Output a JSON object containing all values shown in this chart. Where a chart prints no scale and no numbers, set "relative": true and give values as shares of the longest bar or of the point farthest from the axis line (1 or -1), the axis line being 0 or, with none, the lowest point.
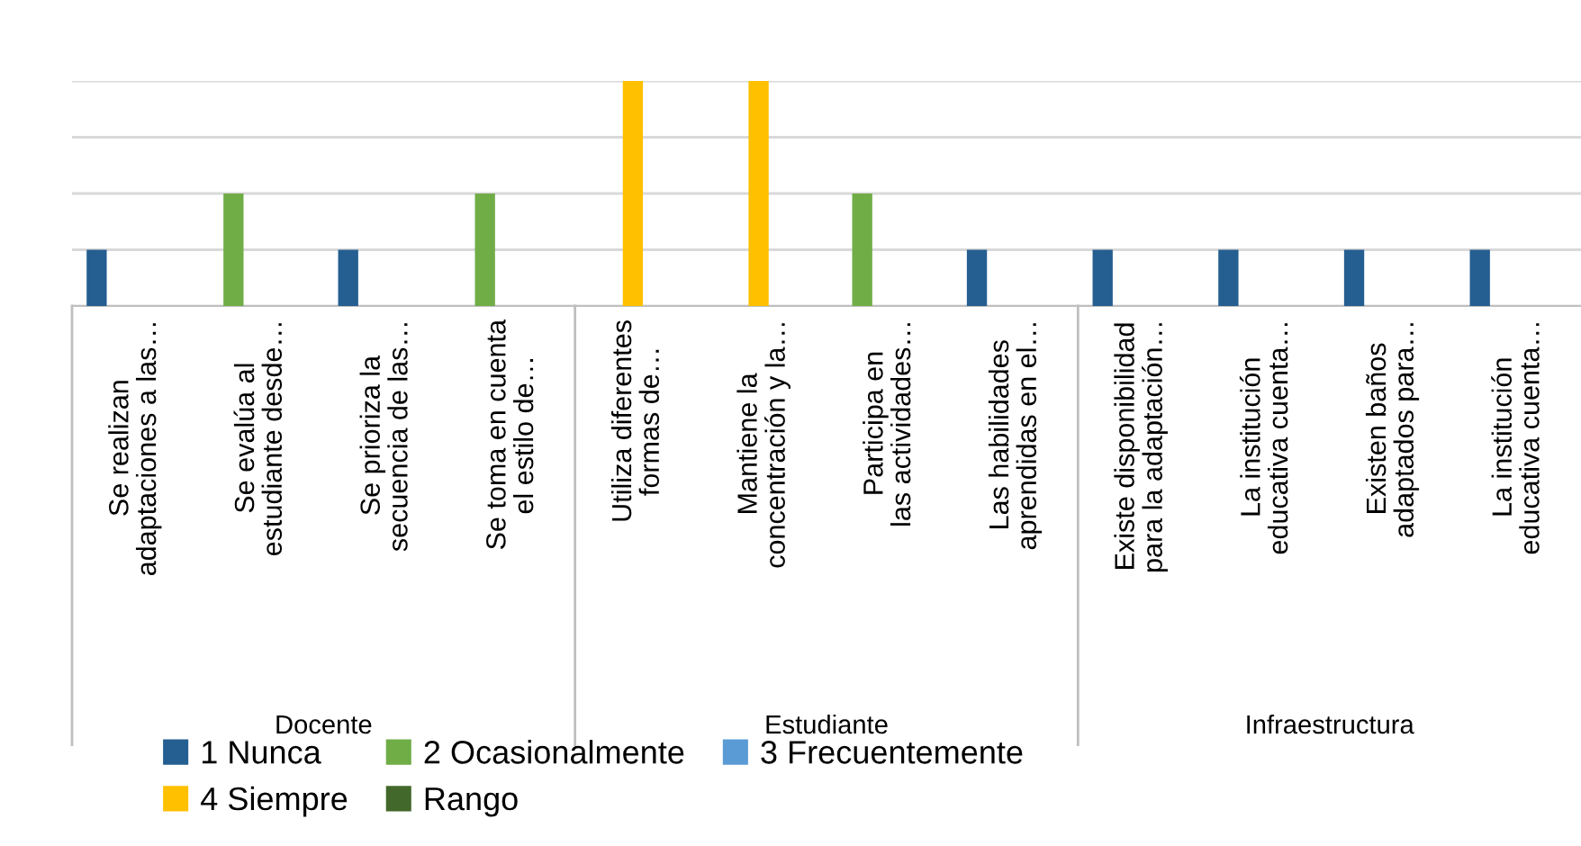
{
  "chart_data": {
    "type": "bar",
    "relative": true,
    "grid": "y",
    "legend": "bottom",
    "categories": [
      "Se realizan adaptaciones a las…",
      "Se evalúa al estudiante desde…",
      "Se prioriza la secuencia de las…",
      "Se toma en cuenta el estilo de…",
      "Utiliza diferentes formas de…",
      "Mantiene la concentración y la…",
      "Participa en las actividades…",
      "Las habilidades aprendidas en el…",
      "Existe disponibilidad para la adaptación…",
      "La institución educativa cuenta…",
      "Existen baños adaptados para…",
      "La institución educativa cuenta…"
    ],
    "annotations": [
      "Docente",
      "Estudiante",
      "Infraestructura"
    ],
    "series": [
      {
        "name": "1 Nunca",
        "color": "#255e91",
        "values": [
          0.25,
          null,
          0.25,
          null,
          null,
          null,
          null,
          0.25,
          0.25,
          0.25,
          0.25,
          0.25
        ]
      },
      {
        "name": "2 Ocasionalmente",
        "color": "#70ad47",
        "values": [
          null,
          0.5,
          null,
          0.5,
          null,
          null,
          0.5,
          null,
          null,
          null,
          null,
          null
        ]
      },
      {
        "name": "3 Frecuentemente",
        "color": "#5b9bd5",
        "values": [
          null,
          null,
          null,
          null,
          null,
          null,
          null,
          null,
          null,
          null,
          null,
          null
        ]
      },
      {
        "name": "4 Siempre",
        "color": "#ffc000",
        "values": [
          null,
          null,
          null,
          null,
          1,
          1,
          null,
          null,
          null,
          null,
          null,
          null
        ]
      },
      {
        "name": "Rango",
        "color": "#43682b",
        "values": [
          null,
          null,
          null,
          null,
          null,
          null,
          null,
          null,
          null,
          null,
          null,
          null
        ]
      }
    ]
  }
}
